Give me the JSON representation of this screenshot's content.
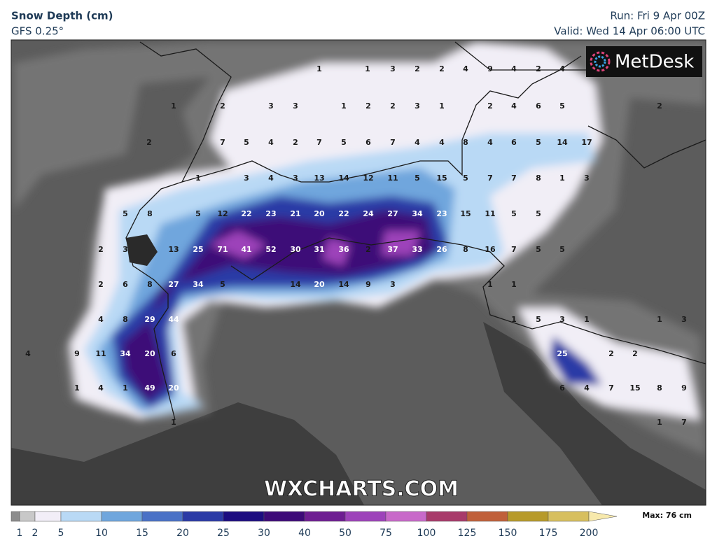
{
  "header": {
    "title": "Snow Depth (cm)",
    "model": "GFS 0.25°",
    "run": "Run: Fri 9 Apr 00Z",
    "valid": "Valid: Wed 14 Apr 06:00 UTC"
  },
  "logo": "MetDesk",
  "watermark": "WXCHARTS.COM",
  "map": {
    "points": [
      1,
      1,
      3,
      2,
      2,
      4,
      9,
      4,
      2,
      4,
      1,
      2,
      3,
      3,
      1,
      2,
      2,
      3,
      1,
      2,
      4,
      6,
      5,
      2,
      2,
      7,
      5,
      4,
      2,
      7,
      5,
      6,
      7,
      4,
      4,
      8,
      4,
      6,
      5,
      14,
      17,
      1,
      3,
      4,
      3,
      13,
      14,
      12,
      11,
      5,
      15,
      5,
      7,
      7,
      8,
      1,
      3,
      5,
      8,
      5,
      12,
      22,
      23,
      21,
      20,
      22,
      24,
      27,
      34,
      23,
      15,
      11,
      5,
      5,
      2,
      3,
      13,
      25,
      71,
      41,
      52,
      30,
      31,
      36,
      2,
      37,
      33,
      26,
      8,
      16,
      7,
      5,
      5,
      2,
      6,
      8,
      27,
      34,
      5,
      14,
      20,
      14,
      9,
      3,
      1,
      1,
      4,
      8,
      29,
      44,
      1,
      5,
      3,
      1,
      1,
      3,
      4,
      9,
      11,
      34,
      20,
      6,
      25,
      2,
      2,
      1,
      4,
      1,
      49,
      20,
      6,
      4,
      7,
      15,
      8,
      9,
      1,
      1,
      7
    ]
  },
  "colorbar": {
    "labels": [
      1,
      2,
      5,
      10,
      15,
      20,
      25,
      30,
      40,
      50,
      75,
      100,
      125,
      150,
      175,
      200
    ],
    "colors": [
      "#8c8c8c",
      "#c8c8c8",
      "#f2eef7",
      "#b9d9f5",
      "#6fa6dd",
      "#4a71c6",
      "#2b3aa6",
      "#1c0c80",
      "#3d0a78",
      "#6e1d92",
      "#9d42ba",
      "#c869c9",
      "#a83a6a",
      "#c0603a",
      "#b79a2a",
      "#d7bf5f",
      "#f7e9ac"
    ],
    "max": "Max: 76 cm"
  }
}
